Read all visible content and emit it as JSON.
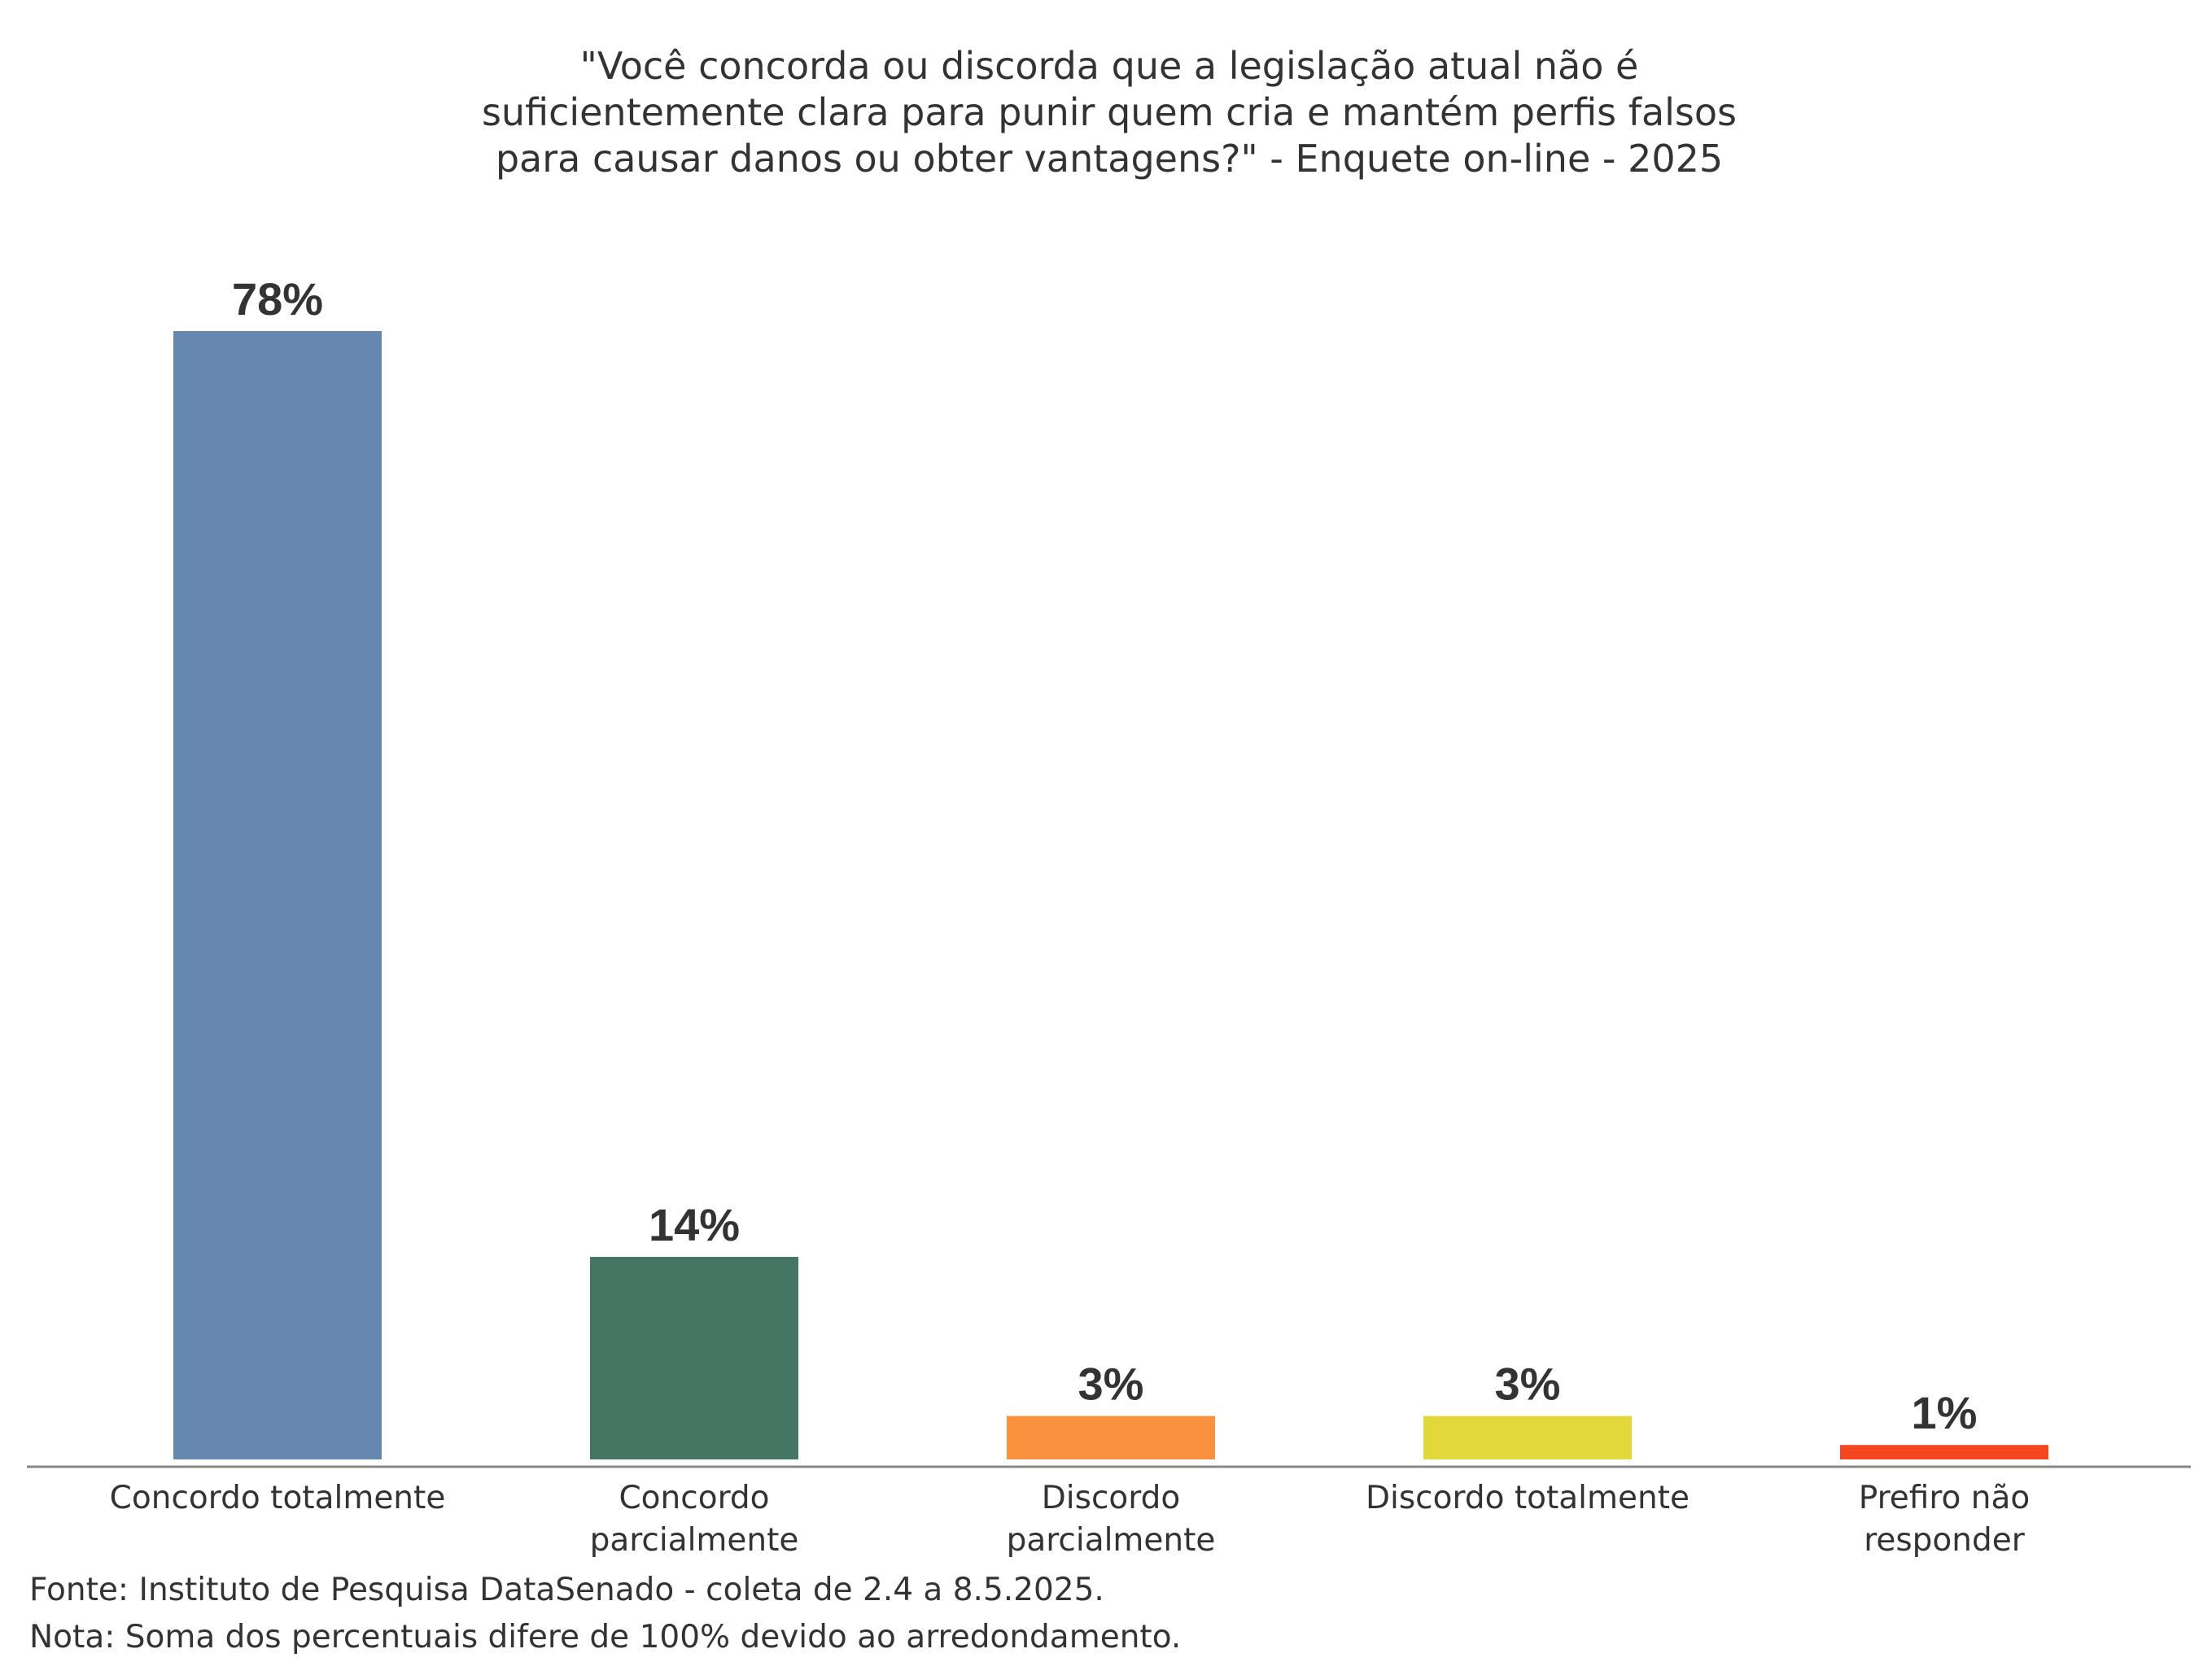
{
  "chart_data": {
    "type": "bar",
    "title_lines": [
      "\"Você concorda ou discorda que a legislação atual não é",
      "suficientemente clara para punir quem cria e mantém perfis falsos",
      "para causar danos ou obter vantagens?\" - Enquete on-line - 2025"
    ],
    "categories": [
      [
        "Concordo totalmente"
      ],
      [
        "Concordo",
        "parcialmente"
      ],
      [
        "Discordo",
        "parcialmente"
      ],
      [
        "Discordo totalmente"
      ],
      [
        "Prefiro não",
        "responder"
      ]
    ],
    "values": [
      78,
      14,
      3,
      3,
      1
    ],
    "value_labels": [
      "78%",
      "14%",
      "3%",
      "3%",
      "1%"
    ],
    "colors": [
      "#6688b0",
      "#457563",
      "#fa913e",
      "#e3d83b",
      "#f4471f"
    ],
    "ylim": [
      0,
      78
    ],
    "xlabel": "",
    "ylabel": "",
    "grid": false,
    "axis_color": "#888888"
  },
  "footnotes": {
    "source": "Fonte: Instituto de Pesquisa DataSenado - coleta de 2.4 a 8.5.2025.",
    "note": "Nota: Soma dos percentuais difere de 100% devido ao arredondamento."
  }
}
